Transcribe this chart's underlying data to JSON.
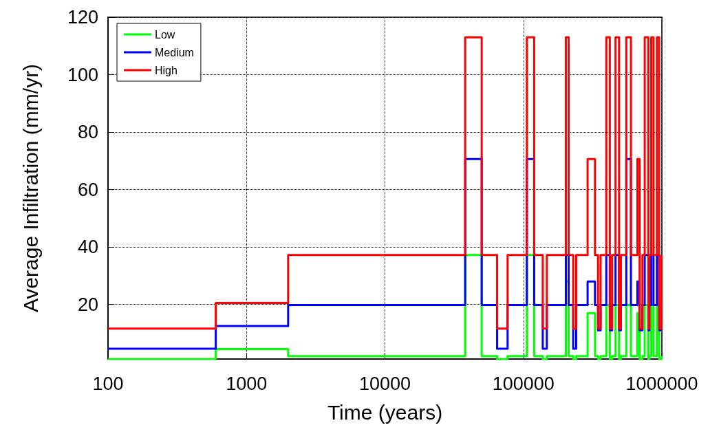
{
  "chart_data": {
    "type": "step",
    "xlabel": "Time (years)",
    "ylabel": "Average Infiltration (mm/yr)",
    "log": "x",
    "xlim": [
      100,
      1000000
    ],
    "xticks": [
      100,
      1000,
      10000,
      100000,
      1000000
    ],
    "ylim": [
      1,
      120
    ],
    "yticks": [
      20,
      40,
      60,
      80,
      100,
      120
    ],
    "grid": true,
    "legend": "top left",
    "line_style": "solid",
    "marker": "none",
    "x": [
      100,
      600,
      2000,
      38000,
      50000,
      64600,
      76900,
      106000,
      119700,
      138000,
      147700,
      202600,
      212300,
      229000,
      240600,
      291000,
      329000,
      346000,
      361000,
      397000,
      421000,
      437000,
      463000,
      491000,
      506000,
      554000,
      598000,
      666000,
      691000,
      724000,
      752000,
      800000,
      812000,
      838000,
      870000,
      921000,
      957000,
      995000,
      1000000
    ],
    "series": [
      {
        "name": "Low",
        "color": "#00ff00",
        "values": [
          1,
          4.5,
          2,
          37.2,
          2,
          1,
          2,
          37.2,
          2,
          1,
          2,
          28,
          2,
          1,
          2,
          17,
          2,
          1,
          2,
          19.8,
          1,
          2,
          19.8,
          1,
          2,
          19.8,
          2,
          17,
          1,
          2,
          19.8,
          1,
          2,
          19.8,
          2,
          19.8,
          1,
          2,
          2
        ]
      },
      {
        "name": "Medium",
        "color": "#0000ff",
        "values": [
          4.6,
          12.5,
          19.8,
          70.6,
          19.8,
          4.6,
          19.8,
          70.6,
          19.8,
          4.6,
          19.8,
          37.2,
          19.8,
          4.6,
          19.8,
          28,
          19.8,
          11,
          19.8,
          37.2,
          11,
          19.8,
          37.2,
          11,
          19.8,
          70.6,
          19.8,
          28,
          11,
          19.8,
          37.2,
          11,
          19.8,
          37.2,
          19.8,
          37.2,
          11,
          null,
          null
        ]
      },
      {
        "name": "High",
        "color": "#ff0000",
        "values": [
          11.6,
          20.5,
          37.2,
          113,
          37.2,
          11.6,
          37.2,
          113,
          37.2,
          11.6,
          37.2,
          113,
          37.2,
          11.6,
          37.2,
          70.6,
          37.2,
          11.6,
          37.2,
          113,
          11.6,
          37.2,
          113,
          11.6,
          37.2,
          113,
          37.2,
          70.6,
          11.6,
          37.2,
          113,
          11.6,
          37.2,
          113,
          37.2,
          113,
          11.6,
          37.2,
          37.2
        ]
      }
    ]
  }
}
